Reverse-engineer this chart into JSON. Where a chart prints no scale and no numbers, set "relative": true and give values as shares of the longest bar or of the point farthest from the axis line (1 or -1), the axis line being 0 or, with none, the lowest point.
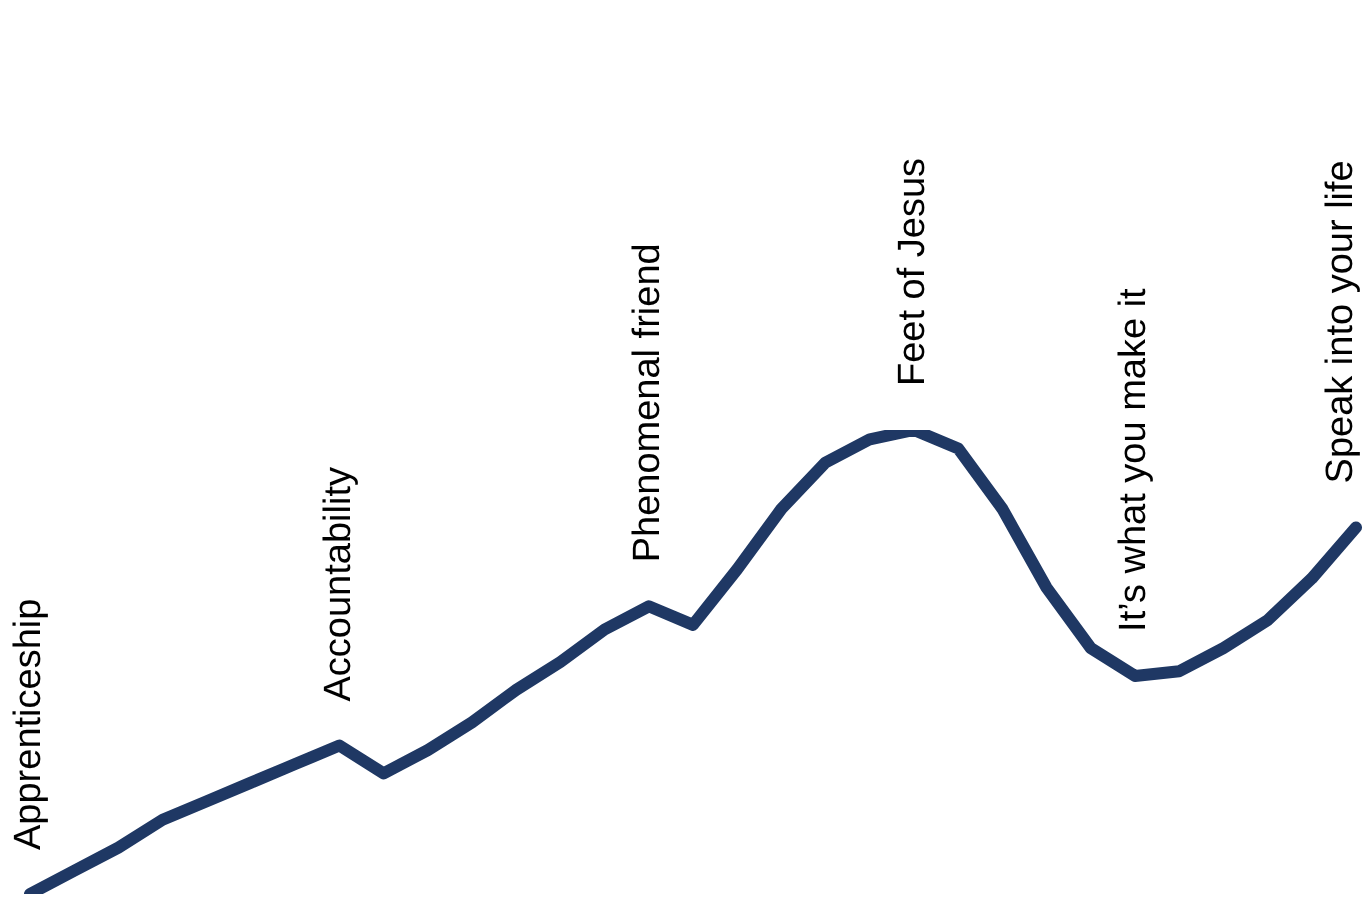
{
  "chart_data": {
    "type": "line",
    "relative": true,
    "marker": "none",
    "legend": false,
    "categories": [
      null,
      null,
      null,
      null,
      null,
      null,
      null,
      null,
      null,
      null,
      null,
      null,
      null,
      null,
      null,
      null,
      null,
      null,
      null,
      null,
      null,
      null,
      null,
      null,
      null,
      null,
      null,
      null,
      null,
      null,
      null
    ],
    "series": [
      {
        "color": "#1f3864",
        "values": [
          0,
          0.05,
          0.1,
          0.16,
          0.2,
          0.24,
          0.28,
          0.32,
          0.26,
          0.31,
          0.37,
          0.44,
          0.5,
          0.57,
          0.62,
          0.58,
          0.7,
          0.83,
          0.93,
          0.98,
          1,
          0.96,
          0.83,
          0.66,
          0.53,
          0.47,
          0.48,
          0.53,
          0.59,
          0.68,
          0.79
        ]
      }
    ],
    "annotations": [
      {
        "text": "Apprenticeship",
        "y": 0
      },
      {
        "text": "Accountability",
        "y": 0.32
      },
      {
        "text": "Phenomenal friend",
        "y": 0.62
      },
      {
        "text": "Feet of Jesus",
        "y": 1
      },
      {
        "text": "It’s what you make it",
        "y": 0.47
      },
      {
        "text": "Speak into your life",
        "y": 0.79
      }
    ]
  }
}
